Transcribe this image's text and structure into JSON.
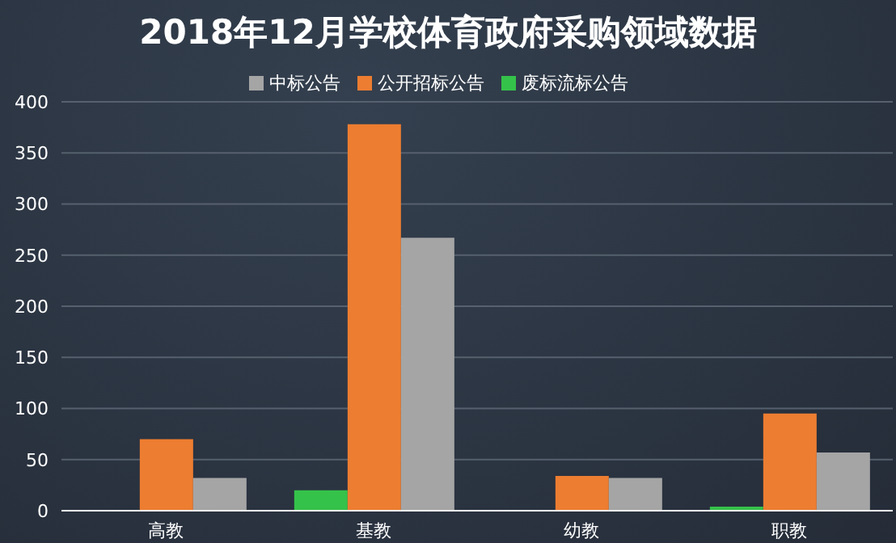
{
  "chart_data": {
    "type": "bar",
    "title": "2018年12月学校体育政府采购领域数据",
    "categories": [
      "高教",
      "基教",
      "幼教",
      "职教"
    ],
    "series": [
      {
        "name": "废标流标公告",
        "color": "#35c24a",
        "values": [
          0,
          20,
          0,
          4
        ]
      },
      {
        "name": "公开招标公告",
        "color": "#ed7d31",
        "values": [
          70,
          378,
          34,
          95
        ]
      },
      {
        "name": "中标公告",
        "color": "#a5a5a5",
        "values": [
          32,
          267,
          32,
          57
        ]
      }
    ],
    "ylim": [
      0,
      400
    ],
    "yticks": [
      0,
      50,
      100,
      150,
      200,
      250,
      300,
      350,
      400
    ],
    "grid": "y",
    "legend": "top"
  }
}
